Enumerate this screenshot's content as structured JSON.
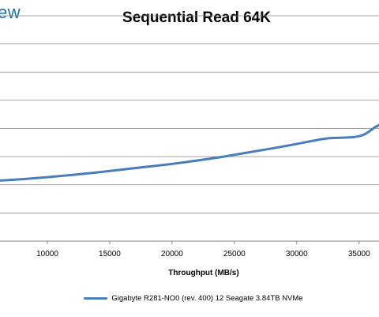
{
  "brand": {
    "fragment": "ew"
  },
  "chart_data": {
    "type": "line",
    "title": "Sequential Read 64K",
    "xlabel": "Throughput (MB/s)",
    "ylabel": "",
    "xlim": [
      6200,
      36600
    ],
    "ylim": [
      0,
      8
    ],
    "x_ticks": [
      10000,
      15000,
      20000,
      25000,
      30000,
      35000
    ],
    "grid": "horizontal",
    "legend_position": "bottom",
    "series": [
      {
        "name": "Gigabyte R281-NO0 (rev. 400) 12 Seagate 3.84TB NVMe",
        "color": "#4a7ebb",
        "x": [
          6200,
          8000,
          10000,
          12000,
          14000,
          16000,
          18000,
          20000,
          22000,
          24000,
          26000,
          28000,
          30000,
          31500,
          32500,
          33500,
          34500,
          35200,
          35700,
          36200,
          36600
        ],
        "y": [
          2.15,
          2.2,
          2.27,
          2.35,
          2.44,
          2.54,
          2.64,
          2.74,
          2.86,
          2.99,
          3.14,
          3.29,
          3.45,
          3.58,
          3.65,
          3.67,
          3.69,
          3.75,
          3.86,
          4.02,
          4.12
        ]
      }
    ]
  }
}
